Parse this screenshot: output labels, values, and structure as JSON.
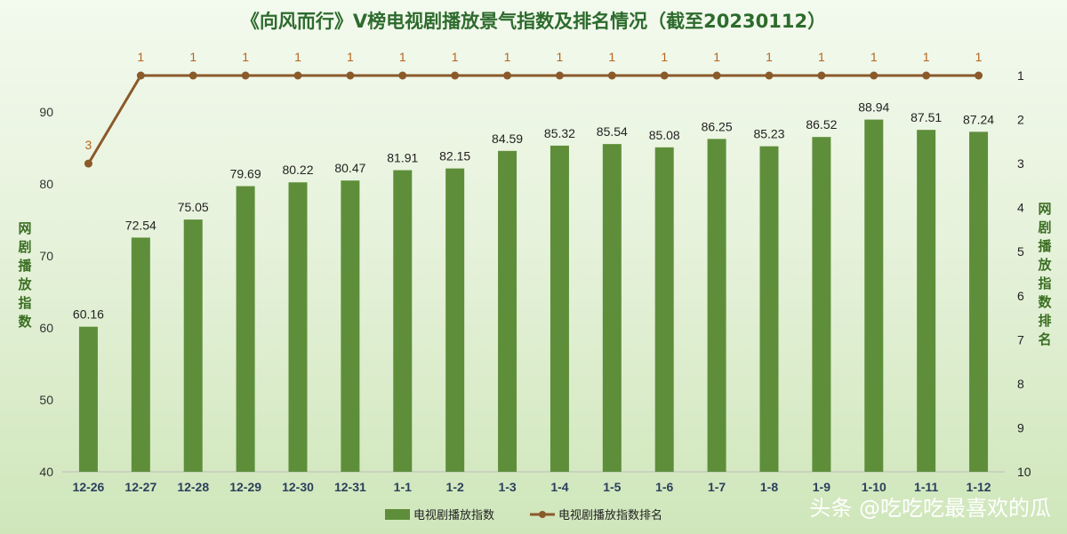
{
  "watermark": "头条 @吃吃吃最喜欢的瓜",
  "chart_data": {
    "type": "bar",
    "title": "《向风而行》V榜电视剧播放景气指数及排名情况（截至20230112）",
    "categories": [
      "12-26",
      "12-27",
      "12-28",
      "12-29",
      "12-30",
      "12-31",
      "1-1",
      "1-2",
      "1-3",
      "1-4",
      "1-5",
      "1-6",
      "1-7",
      "1-8",
      "1-9",
      "1-10",
      "1-11",
      "1-12"
    ],
    "ylabel": "网剧播放指数",
    "y2label": "网剧播放指数排名",
    "ylim": [
      40,
      95
    ],
    "yticks": [
      40,
      50,
      60,
      70,
      80,
      90
    ],
    "y2lim": [
      1,
      10
    ],
    "y2ticks": [
      1,
      2,
      3,
      4,
      5,
      6,
      7,
      8,
      9,
      10
    ],
    "y2_inverted": true,
    "grid": false,
    "legend_position": "bottom",
    "series": [
      {
        "name": "电视剧播放指数",
        "type": "bar",
        "axis": "left",
        "color": "#5e8e3a",
        "values": [
          60.16,
          72.54,
          75.05,
          79.69,
          80.22,
          80.47,
          81.91,
          82.15,
          84.59,
          85.32,
          85.54,
          85.08,
          86.25,
          85.23,
          86.52,
          88.94,
          87.51,
          87.24
        ],
        "labels": [
          "60.16",
          "72.54",
          "75.05",
          "79.69",
          "80.22",
          "80.47",
          "81.91",
          "82.15",
          "84.59",
          "85.32",
          "85.54",
          "85.08",
          "86.25",
          "85.23",
          "86.52",
          "88.94",
          "87.51",
          "87.24"
        ]
      },
      {
        "name": "电视剧播放指数排名",
        "type": "line",
        "axis": "right",
        "color": "#8b5a2b",
        "label_color": "#b5651d",
        "values": [
          3,
          1,
          1,
          1,
          1,
          1,
          1,
          1,
          1,
          1,
          1,
          1,
          1,
          1,
          1,
          1,
          1,
          1
        ],
        "labels": [
          "3",
          "1",
          "1",
          "1",
          "1",
          "1",
          "1",
          "1",
          "1",
          "1",
          "1",
          "1",
          "1",
          "1",
          "1",
          "1",
          "1",
          "1"
        ]
      }
    ]
  }
}
